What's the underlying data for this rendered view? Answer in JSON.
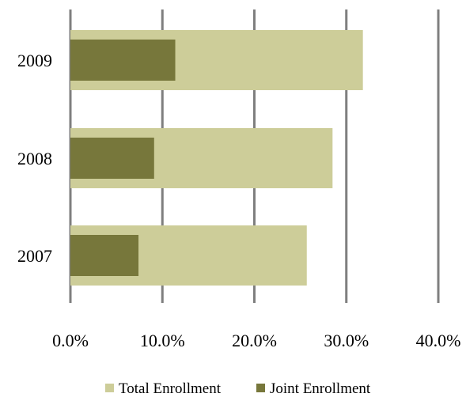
{
  "chart_data": {
    "type": "bar",
    "orientation": "horizontal",
    "layout": "overlapping",
    "categories": [
      "2009",
      "2008",
      "2007"
    ],
    "series": [
      {
        "name": "Total Enrollment",
        "values": [
          31.8,
          28.5,
          25.7
        ],
        "color": "#cdcd99"
      },
      {
        "name": "Joint Enrollment",
        "values": [
          11.4,
          9.1,
          7.4
        ],
        "color": "#77773b"
      }
    ],
    "xlim": [
      0,
      40
    ],
    "xticks": [
      "0.0%",
      "10.0%",
      "20.0%",
      "30.0%",
      "40.0%"
    ],
    "grid": true,
    "gridline_color": "#7f7f7f",
    "legend_position": "bottom",
    "title": "",
    "xlabel": "",
    "ylabel": ""
  }
}
